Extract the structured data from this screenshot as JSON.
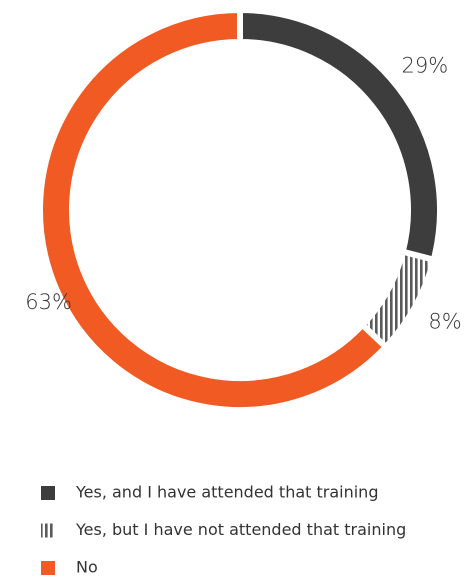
{
  "chart_data": {
    "type": "donut",
    "categories": [
      "Yes, and I have attended that training",
      "Yes, but I have not attended that training",
      "No"
    ],
    "values": [
      29,
      8,
      63
    ],
    "value_labels": [
      "29%",
      "8%",
      "63%"
    ],
    "colors": [
      "#3d3d3d",
      "#5a5a5a",
      "#f15a22"
    ],
    "hatch": [
      false,
      true,
      false
    ],
    "legend": "bottom"
  }
}
